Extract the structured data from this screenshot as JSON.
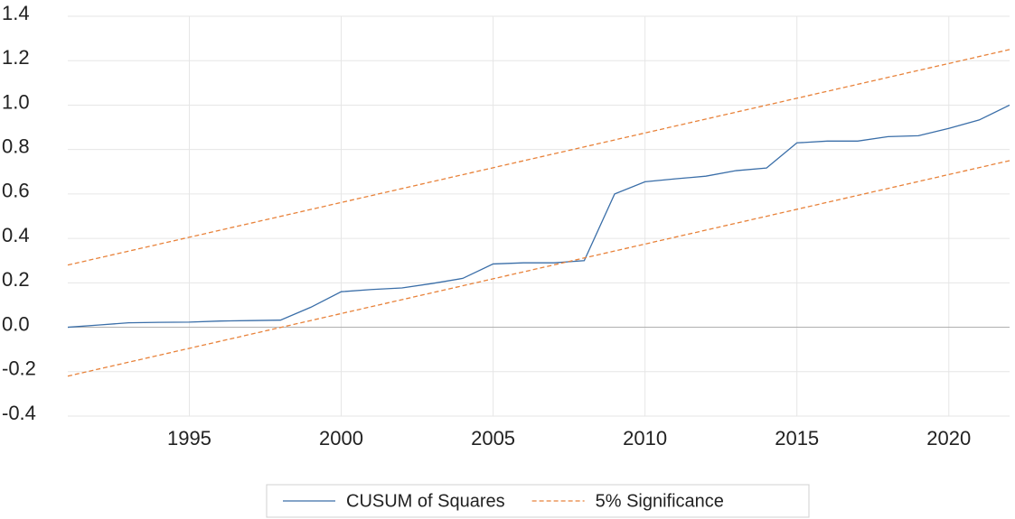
{
  "chart_data": {
    "type": "line",
    "x": [
      1991,
      1992,
      1993,
      1994,
      1995,
      1996,
      1997,
      1998,
      1999,
      2000,
      2001,
      2002,
      2003,
      2004,
      2005,
      2006,
      2007,
      2008,
      2009,
      2010,
      2011,
      2012,
      2013,
      2014,
      2015,
      2016,
      2017,
      2018,
      2019,
      2020,
      2021,
      2022
    ],
    "series": [
      {
        "name": "CUSUM of Squares",
        "color": "#3a6ea8",
        "values": [
          0.0,
          0.01,
          0.02,
          0.022,
          0.023,
          0.028,
          0.03,
          0.032,
          0.09,
          0.16,
          0.17,
          0.177,
          0.197,
          0.22,
          0.285,
          0.29,
          0.29,
          0.3,
          0.6,
          0.655,
          0.668,
          0.68,
          0.705,
          0.717,
          0.83,
          0.838,
          0.838,
          0.858,
          0.862,
          0.895,
          0.933,
          1.0
        ]
      },
      {
        "name": "5% Significance",
        "color": "#e8823a",
        "dash": true,
        "x": [
          1991,
          2022
        ],
        "values": [
          0.28,
          1.25
        ],
        "lower": [
          -0.22,
          0.75
        ]
      }
    ],
    "xlim": [
      1991,
      2022
    ],
    "xticks": [
      1995,
      2000,
      2005,
      2010,
      2015,
      2020
    ],
    "ylim": [
      -0.4,
      1.4
    ],
    "yticks": [
      1.4,
      1.2,
      {
        "value": 1.0,
        "label": "1.0"
      },
      0.8,
      0.6,
      0.4,
      0.2,
      {
        "value": 0.0,
        "label": "0.0"
      },
      -0.2,
      -0.4
    ],
    "grid": true,
    "legend": "bottom"
  }
}
